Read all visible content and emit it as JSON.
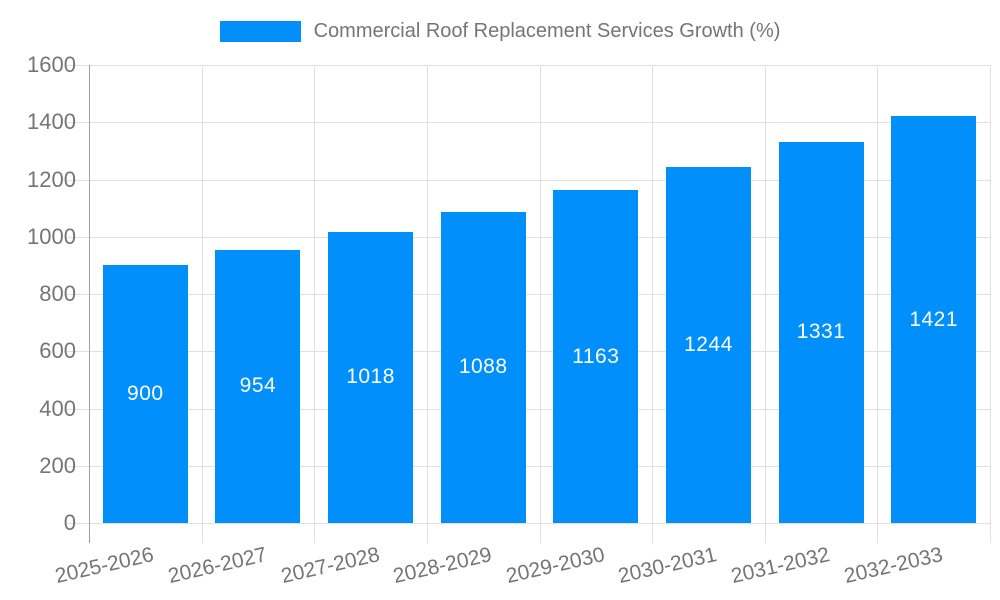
{
  "chart_data": {
    "type": "bar",
    "title": "Commercial Roof Replacement Services Growth (%)",
    "categories": [
      "2025-2026",
      "2026-2027",
      "2027-2028",
      "2028-2029",
      "2029-2030",
      "2030-2031",
      "2031-2032",
      "2032-2033"
    ],
    "values": [
      900,
      954,
      1018,
      1088,
      1163,
      1244,
      1331,
      1421
    ],
    "value_labels": [
      "900",
      "954",
      "1018",
      "1088",
      "1163",
      "1244",
      "1331",
      "1421"
    ],
    "xlabel": "",
    "ylabel": "",
    "ylim": [
      0,
      1600
    ],
    "yticks": [
      0,
      200,
      400,
      600,
      800,
      1000,
      1200,
      1400,
      1600
    ],
    "grid": true,
    "legend_position": "top",
    "value_label_position": "inside-center"
  },
  "colors": {
    "bar": "#008FFB",
    "grid": "#e0e0e0",
    "axis_line": "#9e9e9e",
    "tick_text": "#757575",
    "value_label_text": "#ffffff",
    "background": "#ffffff"
  }
}
